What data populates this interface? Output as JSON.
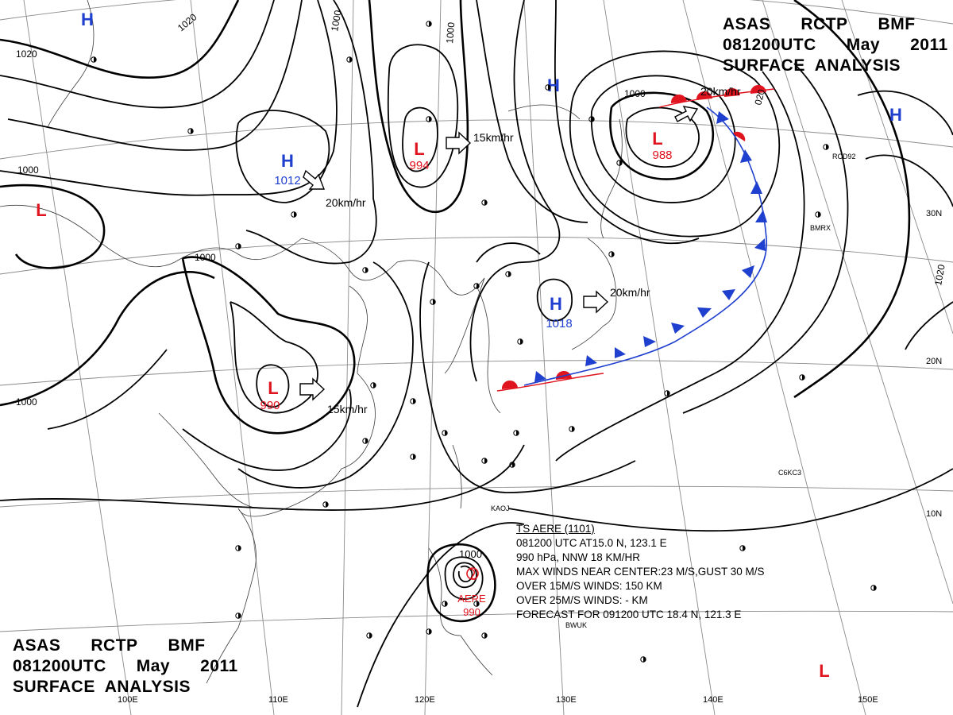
{
  "header": {
    "line1": [
      "ASAS",
      "RCTP",
      "BMF"
    ],
    "line2": [
      "081200UTC",
      "May",
      "2011"
    ],
    "line3": "SURFACE  ANALYSIS"
  },
  "pressure_systems": [
    {
      "type": "H",
      "value": "1012",
      "color": "#1f3fcf"
    },
    {
      "type": "L",
      "value": "994",
      "color": "#e0141e"
    },
    {
      "type": "L",
      "value": "988",
      "color": "#e0141e"
    },
    {
      "type": "H",
      "value": "1018",
      "color": "#1f3fcf"
    },
    {
      "type": "L",
      "value": "990",
      "color": "#e0141e"
    },
    {
      "type": "H",
      "value": "",
      "color": "#1f3fcf"
    },
    {
      "type": "H",
      "value": "",
      "color": "#1f3fcf"
    },
    {
      "type": "H",
      "value": "",
      "color": "#1f3fcf"
    },
    {
      "type": "L",
      "value": "",
      "color": "#e0141e"
    },
    {
      "type": "L",
      "value": "",
      "color": "#e0141e"
    }
  ],
  "motion_labels": [
    "15km/hr",
    "20km/hr",
    "20km/hr",
    "20km/hr",
    "15km/hr"
  ],
  "isobar_labels": [
    "1020",
    "1020",
    "1000",
    "1000",
    "1000",
    "1000",
    "1000",
    "1000",
    "1000",
    "1020",
    "020"
  ],
  "typhoon": {
    "isobar": "1000",
    "name": "AERE",
    "pressure": "990",
    "info": [
      "TS  AERE  (1101)",
      "081200 UTC  AT15.0 N, 123.1 E",
      "990 hPa, NNW  18 KM/HR",
      "MAX WINDS NEAR CENTER:23 M/S,GUST 30 M/S",
      "OVER 15M/S WINDS: 150 KM",
      "OVER 25M/S WINDS: - KM",
      "FORECAST FOR 091200 UTC 18.4 N, 121.3 E"
    ]
  },
  "latitude_labels": [
    "30N",
    "20N",
    "10N"
  ],
  "longitude_labels": [
    "100E",
    "110E",
    "120E",
    "130E",
    "140E",
    "150E"
  ],
  "station_labels": [
    "KAOJ",
    "BWUK",
    "C6KC3",
    "BMRX",
    "RCD92"
  ],
  "colors": {
    "high": "#1f3fcf",
    "low": "#e0141e",
    "isobar": "#000000",
    "grid": "#8a8a8a",
    "coast": "#3a3a3a"
  }
}
